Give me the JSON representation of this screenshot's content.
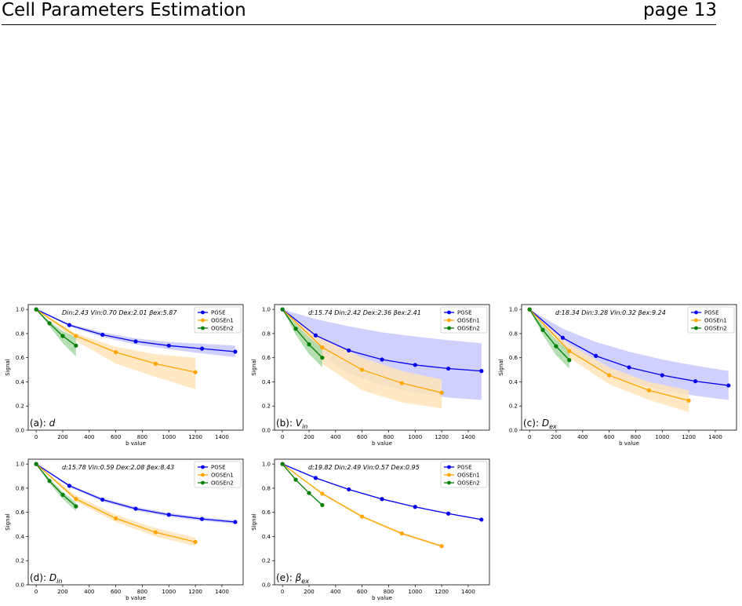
{
  "header": {
    "title": "Cell Parameters Estimation",
    "page": "page 13"
  },
  "legend": {
    "pgse": "PGSE",
    "ogsen1": "OGSEn1",
    "ogsen2": "OGSEn2"
  },
  "colors": {
    "pgse": "#0000ee",
    "ogsen1": "#ffa500",
    "ogsen2": "#008000",
    "pgse_band": "#c8c8ff",
    "ogsen1_band": "#ffe4b8",
    "ogsen2_band": "#a8d8a8"
  },
  "chart_data": [
    {
      "type": "line",
      "panel_label": "(a): ",
      "panel_symbol": "d",
      "panel_sub": "",
      "annotation": "Din:2.43 Vin:0.70 Dex:2.01 βex:5.87",
      "xlabel": "b value",
      "ylabel": "Signal",
      "xlim": [
        -60,
        1560
      ],
      "ylim": [
        0.0,
        1.04
      ],
      "xticks": [
        0,
        200,
        400,
        600,
        800,
        1000,
        1200,
        1400
      ],
      "yticks": [
        0.0,
        0.2,
        0.4,
        0.6,
        0.8,
        1.0
      ],
      "legend_position": "top-right",
      "series": [
        {
          "name": "PGSE",
          "x": [
            0,
            250,
            500,
            750,
            1000,
            1250,
            1500
          ],
          "y": [
            1.0,
            0.87,
            0.79,
            0.735,
            0.7,
            0.675,
            0.65
          ],
          "lower": [
            1.0,
            0.86,
            0.77,
            0.71,
            0.67,
            0.635,
            0.605
          ],
          "upper": [
            1.0,
            0.88,
            0.81,
            0.76,
            0.73,
            0.715,
            0.7
          ]
        },
        {
          "name": "OGSEn1",
          "x": [
            0,
            300,
            600,
            900,
            1200
          ],
          "y": [
            1.0,
            0.78,
            0.645,
            0.55,
            0.48
          ],
          "lower": [
            1.0,
            0.74,
            0.55,
            0.44,
            0.34
          ],
          "upper": [
            1.0,
            0.8,
            0.69,
            0.63,
            0.6
          ]
        },
        {
          "name": "OGSEn2",
          "x": [
            0,
            100,
            200,
            300
          ],
          "y": [
            1.0,
            0.885,
            0.78,
            0.7
          ],
          "lower": [
            1.0,
            0.86,
            0.72,
            0.61
          ],
          "upper": [
            1.0,
            0.9,
            0.82,
            0.77
          ]
        }
      ]
    },
    {
      "type": "line",
      "panel_label": "(b): ",
      "panel_symbol": "V",
      "panel_sub": "in",
      "annotation": "d:15.74 Din:2.42 Dex:2.36 βex:2.41",
      "xlabel": "b value",
      "ylabel": "Signal",
      "xlim": [
        -60,
        1560
      ],
      "ylim": [
        0.0,
        1.04
      ],
      "xticks": [
        0,
        200,
        400,
        600,
        800,
        1000,
        1200,
        1400
      ],
      "yticks": [
        0.0,
        0.2,
        0.4,
        0.6,
        0.8,
        1.0
      ],
      "legend_position": "top-right",
      "series": [
        {
          "name": "PGSE",
          "x": [
            0,
            250,
            500,
            750,
            1000,
            1250,
            1500
          ],
          "y": [
            1.0,
            0.785,
            0.66,
            0.585,
            0.54,
            0.51,
            0.49
          ],
          "lower": [
            1.0,
            0.66,
            0.47,
            0.37,
            0.31,
            0.27,
            0.25
          ],
          "upper": [
            1.0,
            0.92,
            0.86,
            0.81,
            0.775,
            0.745,
            0.72
          ]
        },
        {
          "name": "OGSEn1",
          "x": [
            0,
            300,
            600,
            900,
            1200
          ],
          "y": [
            1.0,
            0.685,
            0.5,
            0.39,
            0.31
          ],
          "lower": [
            1.0,
            0.55,
            0.33,
            0.23,
            0.18
          ],
          "upper": [
            1.0,
            0.76,
            0.6,
            0.49,
            0.42
          ]
        },
        {
          "name": "OGSEn2",
          "x": [
            0,
            100,
            200,
            300
          ],
          "y": [
            1.0,
            0.84,
            0.71,
            0.6
          ],
          "lower": [
            1.0,
            0.79,
            0.63,
            0.52
          ],
          "upper": [
            1.0,
            0.88,
            0.77,
            0.68
          ]
        }
      ]
    },
    {
      "type": "line",
      "panel_label": "(c): ",
      "panel_symbol": "D",
      "panel_sub": "ex",
      "annotation": "d:18.34 Din:3.28 Vin:0.32 βex:9.24",
      "xlabel": "b value",
      "ylabel": "Signal",
      "xlim": [
        -60,
        1560
      ],
      "ylim": [
        0.0,
        1.04
      ],
      "xticks": [
        0,
        200,
        400,
        600,
        800,
        1000,
        1200,
        1400
      ],
      "yticks": [
        0.0,
        0.2,
        0.4,
        0.6,
        0.8,
        1.0
      ],
      "legend_position": "top-right",
      "series": [
        {
          "name": "PGSE",
          "x": [
            0,
            250,
            500,
            750,
            1000,
            1250,
            1500
          ],
          "y": [
            1.0,
            0.765,
            0.615,
            0.52,
            0.455,
            0.405,
            0.37
          ],
          "lower": [
            1.0,
            0.7,
            0.51,
            0.4,
            0.33,
            0.285,
            0.25
          ],
          "upper": [
            1.0,
            0.84,
            0.73,
            0.65,
            0.585,
            0.535,
            0.49
          ]
        },
        {
          "name": "OGSEn1",
          "x": [
            0,
            300,
            600,
            900,
            1200
          ],
          "y": [
            1.0,
            0.655,
            0.455,
            0.33,
            0.245
          ],
          "lower": [
            1.0,
            0.6,
            0.38,
            0.25,
            0.15
          ],
          "upper": [
            1.0,
            0.71,
            0.52,
            0.4,
            0.33
          ]
        },
        {
          "name": "OGSEn2",
          "x": [
            0,
            100,
            200,
            300
          ],
          "y": [
            1.0,
            0.83,
            0.695,
            0.58
          ],
          "lower": [
            1.0,
            0.79,
            0.62,
            0.51
          ],
          "upper": [
            1.0,
            0.87,
            0.75,
            0.66
          ]
        }
      ]
    },
    {
      "type": "line",
      "panel_label": "(d): ",
      "panel_symbol": "D",
      "panel_sub": "in",
      "annotation": "d:15.78 Vin:0.59 Dex:2.08 βex:8.43",
      "xlabel": "b value",
      "ylabel": "Signal",
      "xlim": [
        -60,
        1560
      ],
      "ylim": [
        0.0,
        1.04
      ],
      "xticks": [
        0,
        200,
        400,
        600,
        800,
        1000,
        1200,
        1400
      ],
      "yticks": [
        0.0,
        0.2,
        0.4,
        0.6,
        0.8,
        1.0
      ],
      "legend_position": "top-right",
      "series": [
        {
          "name": "PGSE",
          "x": [
            0,
            250,
            500,
            750,
            1000,
            1250,
            1500
          ],
          "y": [
            1.0,
            0.82,
            0.705,
            0.63,
            0.58,
            0.545,
            0.52
          ],
          "lower": [
            1.0,
            0.81,
            0.69,
            0.615,
            0.565,
            0.53,
            0.505
          ],
          "upper": [
            1.0,
            0.83,
            0.72,
            0.645,
            0.595,
            0.56,
            0.535
          ]
        },
        {
          "name": "OGSEn1",
          "x": [
            0,
            300,
            600,
            900,
            1200
          ],
          "y": [
            1.0,
            0.71,
            0.55,
            0.435,
            0.355
          ],
          "lower": [
            1.0,
            0.69,
            0.52,
            0.4,
            0.32
          ],
          "upper": [
            1.0,
            0.74,
            0.58,
            0.47,
            0.39
          ]
        },
        {
          "name": "OGSEn2",
          "x": [
            0,
            100,
            200,
            300
          ],
          "y": [
            1.0,
            0.86,
            0.745,
            0.65
          ],
          "lower": [
            1.0,
            0.84,
            0.71,
            0.61
          ],
          "upper": [
            1.0,
            0.88,
            0.77,
            0.68
          ]
        }
      ]
    },
    {
      "type": "line",
      "panel_label": "(e): ",
      "panel_symbol": "β",
      "panel_sub": "ex",
      "annotation": "d:19.82 Din:2.49 Vin:0.57 Dex:0.95",
      "xlabel": "b value",
      "ylabel": "Signal",
      "xlim": [
        -60,
        1560
      ],
      "ylim": [
        0.0,
        1.04
      ],
      "xticks": [
        0,
        200,
        400,
        600,
        800,
        1000,
        1200,
        1400
      ],
      "yticks": [
        0.0,
        0.2,
        0.4,
        0.6,
        0.8,
        1.0
      ],
      "legend_position": "top-right",
      "series": [
        {
          "name": "PGSE",
          "x": [
            0,
            250,
            500,
            750,
            1000,
            1250,
            1500
          ],
          "y": [
            1.0,
            0.885,
            0.79,
            0.71,
            0.645,
            0.59,
            0.54
          ],
          "lower": [
            1.0,
            0.88,
            0.785,
            0.705,
            0.64,
            0.585,
            0.535
          ],
          "upper": [
            1.0,
            0.89,
            0.795,
            0.715,
            0.65,
            0.595,
            0.545
          ]
        },
        {
          "name": "OGSEn1",
          "x": [
            0,
            300,
            600,
            900,
            1200
          ],
          "y": [
            1.0,
            0.755,
            0.565,
            0.425,
            0.32
          ],
          "lower": [
            1.0,
            0.745,
            0.555,
            0.415,
            0.31
          ],
          "upper": [
            1.0,
            0.765,
            0.575,
            0.435,
            0.33
          ]
        },
        {
          "name": "OGSEn2",
          "x": [
            0,
            100,
            200,
            300
          ],
          "y": [
            1.0,
            0.87,
            0.76,
            0.66
          ],
          "lower": [
            1.0,
            0.865,
            0.755,
            0.655
          ],
          "upper": [
            1.0,
            0.875,
            0.765,
            0.665
          ]
        }
      ]
    }
  ]
}
